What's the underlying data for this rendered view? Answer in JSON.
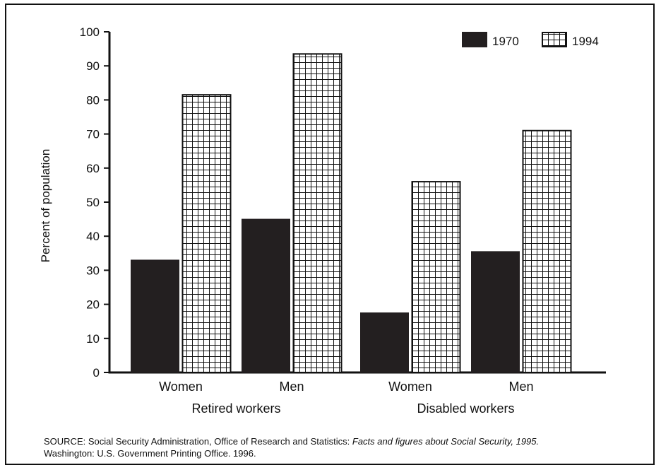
{
  "chart_data": {
    "type": "bar",
    "title": "",
    "ylabel": "Percent of population",
    "ylim": [
      0,
      100
    ],
    "yticks": [
      0,
      10,
      20,
      30,
      40,
      50,
      60,
      70,
      80,
      90,
      100
    ],
    "grid": false,
    "legend_position": "top-right",
    "groups": [
      {
        "label": "Retired workers",
        "categories": [
          "Women",
          "Men"
        ]
      },
      {
        "label": "Disabled workers",
        "categories": [
          "Women",
          "Men"
        ]
      }
    ],
    "series": [
      {
        "name": "1970",
        "fill": "solid",
        "values": [
          33,
          45,
          17.5,
          35.5
        ]
      },
      {
        "name": "1994",
        "fill": "grid",
        "values": [
          81.5,
          93.5,
          56,
          71
        ]
      }
    ],
    "colors": {
      "bar_dark": "#231f20",
      "axis": "#111111",
      "grid_fill_bg": "#ffffff"
    }
  },
  "source": {
    "prefix": "SOURCE: Social Security Administration, Office of Research and Statistics: ",
    "title": "Facts and figures about Social Security, 1995.",
    "line2": "Washington: U.S. Government Printing Office. 1996."
  }
}
